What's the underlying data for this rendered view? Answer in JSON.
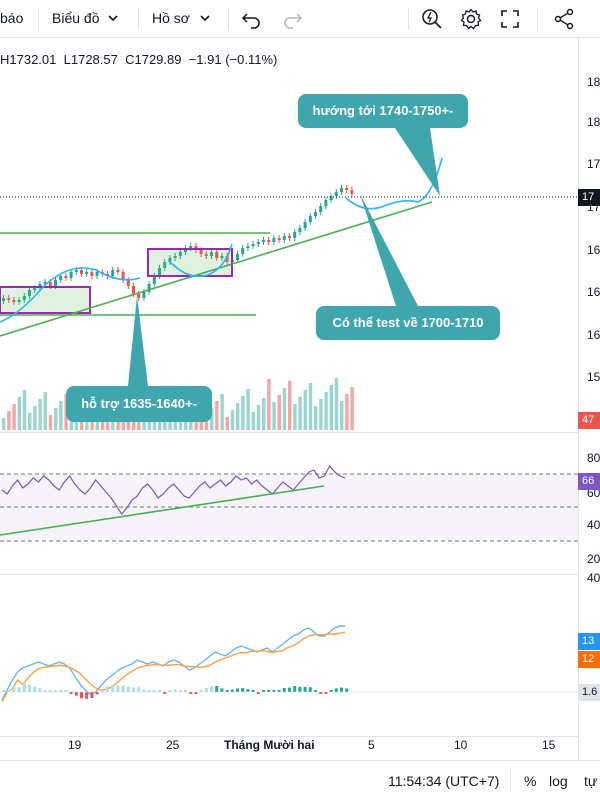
{
  "toolbar": {
    "left_cut_label": "báo",
    "chart_menu_label": "Biểu đồ",
    "profile_menu_label": "Hồ sơ",
    "icons": [
      "chevron-down-icon",
      "undo-icon",
      "redo-icon",
      "zoom-lightning-icon",
      "gear-icon",
      "fullscreen-icon",
      "share-icon"
    ]
  },
  "ohlc": {
    "high": "H1732.01",
    "low": "L1728.57",
    "close": "C1729.89",
    "change": "−1.91 (−0.11%)"
  },
  "price_axis": {
    "labels": [
      "18",
      "18",
      "17",
      "17",
      "16",
      "16",
      "16",
      "15"
    ],
    "current_price_badge": "17",
    "volume_badge": "47"
  },
  "rsi_axis": {
    "labels": [
      "80",
      "60",
      "40",
      "20"
    ],
    "value_badge": "66"
  },
  "macd_axis": {
    "top_label": "40",
    "macd_badge": "13",
    "signal_badge": "12",
    "histogram_badge": "1.6"
  },
  "annotations": {
    "target": "hướng tới 1740-1750+-",
    "test": "Có thể test về 1700-1710",
    "support": "hỗ trợ 1635-1640+-"
  },
  "time_axis": {
    "labels": [
      "19",
      "25",
      "Tháng Mười hai",
      "5",
      "10",
      "15"
    ]
  },
  "bottom_bar": {
    "clock": "11:54:34 (UTC+7)",
    "percent_label": "%",
    "log_label": "log",
    "auto_label": "tự"
  },
  "colors": {
    "up": "#26a69a",
    "down": "#ef5350",
    "accent_teal": "#40a6ad",
    "rsi_line": "#7e57c2",
    "trend_green": "#4caf50",
    "box_purple": "#9c27b0",
    "macd_blue": "#2196f3",
    "signal_orange": "#ff6d00"
  }
}
